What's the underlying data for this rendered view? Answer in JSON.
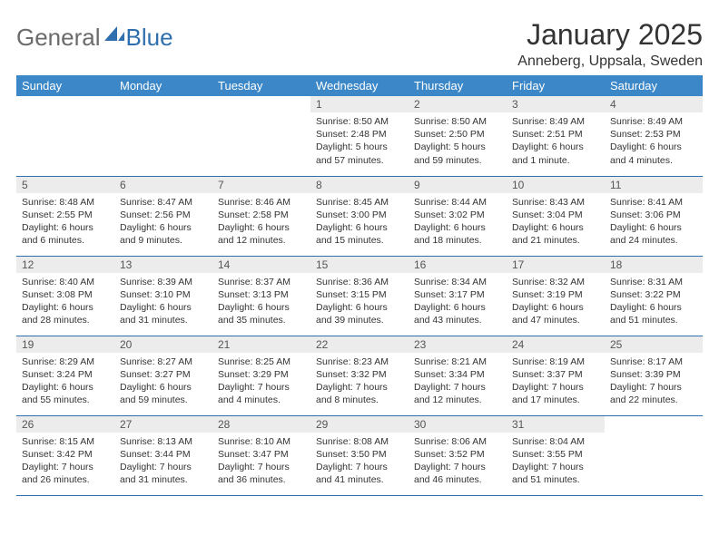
{
  "brand": {
    "part1": "General",
    "part2": "Blue"
  },
  "title": "January 2025",
  "location": "Anneberg, Uppsala, Sweden",
  "colors": {
    "header_bg": "#3b87c8",
    "header_text": "#ffffff",
    "daynum_bg": "#ececec",
    "border": "#2f6fae",
    "brand_gray": "#6b6b6b",
    "brand_blue": "#2f6fae"
  },
  "weekdays": [
    "Sunday",
    "Monday",
    "Tuesday",
    "Wednesday",
    "Thursday",
    "Friday",
    "Saturday"
  ],
  "weeks": [
    [
      null,
      null,
      null,
      {
        "n": "1",
        "sr": "Sunrise: 8:50 AM",
        "ss": "Sunset: 2:48 PM",
        "d1": "Daylight: 5 hours",
        "d2": "and 57 minutes."
      },
      {
        "n": "2",
        "sr": "Sunrise: 8:50 AM",
        "ss": "Sunset: 2:50 PM",
        "d1": "Daylight: 5 hours",
        "d2": "and 59 minutes."
      },
      {
        "n": "3",
        "sr": "Sunrise: 8:49 AM",
        "ss": "Sunset: 2:51 PM",
        "d1": "Daylight: 6 hours",
        "d2": "and 1 minute."
      },
      {
        "n": "4",
        "sr": "Sunrise: 8:49 AM",
        "ss": "Sunset: 2:53 PM",
        "d1": "Daylight: 6 hours",
        "d2": "and 4 minutes."
      }
    ],
    [
      {
        "n": "5",
        "sr": "Sunrise: 8:48 AM",
        "ss": "Sunset: 2:55 PM",
        "d1": "Daylight: 6 hours",
        "d2": "and 6 minutes."
      },
      {
        "n": "6",
        "sr": "Sunrise: 8:47 AM",
        "ss": "Sunset: 2:56 PM",
        "d1": "Daylight: 6 hours",
        "d2": "and 9 minutes."
      },
      {
        "n": "7",
        "sr": "Sunrise: 8:46 AM",
        "ss": "Sunset: 2:58 PM",
        "d1": "Daylight: 6 hours",
        "d2": "and 12 minutes."
      },
      {
        "n": "8",
        "sr": "Sunrise: 8:45 AM",
        "ss": "Sunset: 3:00 PM",
        "d1": "Daylight: 6 hours",
        "d2": "and 15 minutes."
      },
      {
        "n": "9",
        "sr": "Sunrise: 8:44 AM",
        "ss": "Sunset: 3:02 PM",
        "d1": "Daylight: 6 hours",
        "d2": "and 18 minutes."
      },
      {
        "n": "10",
        "sr": "Sunrise: 8:43 AM",
        "ss": "Sunset: 3:04 PM",
        "d1": "Daylight: 6 hours",
        "d2": "and 21 minutes."
      },
      {
        "n": "11",
        "sr": "Sunrise: 8:41 AM",
        "ss": "Sunset: 3:06 PM",
        "d1": "Daylight: 6 hours",
        "d2": "and 24 minutes."
      }
    ],
    [
      {
        "n": "12",
        "sr": "Sunrise: 8:40 AM",
        "ss": "Sunset: 3:08 PM",
        "d1": "Daylight: 6 hours",
        "d2": "and 28 minutes."
      },
      {
        "n": "13",
        "sr": "Sunrise: 8:39 AM",
        "ss": "Sunset: 3:10 PM",
        "d1": "Daylight: 6 hours",
        "d2": "and 31 minutes."
      },
      {
        "n": "14",
        "sr": "Sunrise: 8:37 AM",
        "ss": "Sunset: 3:13 PM",
        "d1": "Daylight: 6 hours",
        "d2": "and 35 minutes."
      },
      {
        "n": "15",
        "sr": "Sunrise: 8:36 AM",
        "ss": "Sunset: 3:15 PM",
        "d1": "Daylight: 6 hours",
        "d2": "and 39 minutes."
      },
      {
        "n": "16",
        "sr": "Sunrise: 8:34 AM",
        "ss": "Sunset: 3:17 PM",
        "d1": "Daylight: 6 hours",
        "d2": "and 43 minutes."
      },
      {
        "n": "17",
        "sr": "Sunrise: 8:32 AM",
        "ss": "Sunset: 3:19 PM",
        "d1": "Daylight: 6 hours",
        "d2": "and 47 minutes."
      },
      {
        "n": "18",
        "sr": "Sunrise: 8:31 AM",
        "ss": "Sunset: 3:22 PM",
        "d1": "Daylight: 6 hours",
        "d2": "and 51 minutes."
      }
    ],
    [
      {
        "n": "19",
        "sr": "Sunrise: 8:29 AM",
        "ss": "Sunset: 3:24 PM",
        "d1": "Daylight: 6 hours",
        "d2": "and 55 minutes."
      },
      {
        "n": "20",
        "sr": "Sunrise: 8:27 AM",
        "ss": "Sunset: 3:27 PM",
        "d1": "Daylight: 6 hours",
        "d2": "and 59 minutes."
      },
      {
        "n": "21",
        "sr": "Sunrise: 8:25 AM",
        "ss": "Sunset: 3:29 PM",
        "d1": "Daylight: 7 hours",
        "d2": "and 4 minutes."
      },
      {
        "n": "22",
        "sr": "Sunrise: 8:23 AM",
        "ss": "Sunset: 3:32 PM",
        "d1": "Daylight: 7 hours",
        "d2": "and 8 minutes."
      },
      {
        "n": "23",
        "sr": "Sunrise: 8:21 AM",
        "ss": "Sunset: 3:34 PM",
        "d1": "Daylight: 7 hours",
        "d2": "and 12 minutes."
      },
      {
        "n": "24",
        "sr": "Sunrise: 8:19 AM",
        "ss": "Sunset: 3:37 PM",
        "d1": "Daylight: 7 hours",
        "d2": "and 17 minutes."
      },
      {
        "n": "25",
        "sr": "Sunrise: 8:17 AM",
        "ss": "Sunset: 3:39 PM",
        "d1": "Daylight: 7 hours",
        "d2": "and 22 minutes."
      }
    ],
    [
      {
        "n": "26",
        "sr": "Sunrise: 8:15 AM",
        "ss": "Sunset: 3:42 PM",
        "d1": "Daylight: 7 hours",
        "d2": "and 26 minutes."
      },
      {
        "n": "27",
        "sr": "Sunrise: 8:13 AM",
        "ss": "Sunset: 3:44 PM",
        "d1": "Daylight: 7 hours",
        "d2": "and 31 minutes."
      },
      {
        "n": "28",
        "sr": "Sunrise: 8:10 AM",
        "ss": "Sunset: 3:47 PM",
        "d1": "Daylight: 7 hours",
        "d2": "and 36 minutes."
      },
      {
        "n": "29",
        "sr": "Sunrise: 8:08 AM",
        "ss": "Sunset: 3:50 PM",
        "d1": "Daylight: 7 hours",
        "d2": "and 41 minutes."
      },
      {
        "n": "30",
        "sr": "Sunrise: 8:06 AM",
        "ss": "Sunset: 3:52 PM",
        "d1": "Daylight: 7 hours",
        "d2": "and 46 minutes."
      },
      {
        "n": "31",
        "sr": "Sunrise: 8:04 AM",
        "ss": "Sunset: 3:55 PM",
        "d1": "Daylight: 7 hours",
        "d2": "and 51 minutes."
      },
      null
    ]
  ]
}
